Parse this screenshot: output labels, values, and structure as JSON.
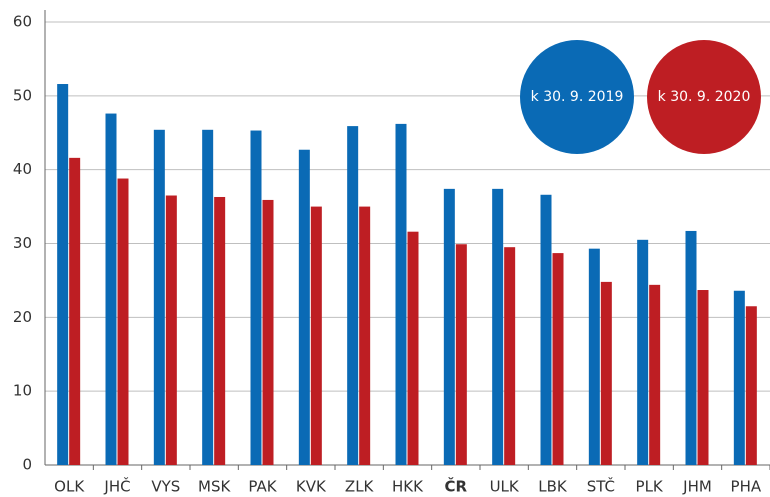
{
  "chart_data": {
    "type": "bar",
    "categories": [
      "OLK",
      "JHČ",
      "VYS",
      "MSK",
      "PAK",
      "KVK",
      "ZLK",
      "HKK",
      "ČR",
      "ULK",
      "LBK",
      "STČ",
      "PLK",
      "JHM",
      "PHA"
    ],
    "highlight_index": 8,
    "series": [
      {
        "name": "k 30. 9. 2019",
        "color": "#0a6ab5",
        "values": [
          51.6,
          47.6,
          45.4,
          45.4,
          45.3,
          42.7,
          45.9,
          46.2,
          37.4,
          37.4,
          36.6,
          29.3,
          30.5,
          31.7,
          23.6
        ]
      },
      {
        "name": "k 30. 9. 2020",
        "color": "#be1e23",
        "values": [
          41.6,
          38.8,
          36.5,
          36.3,
          35.9,
          35.0,
          35.0,
          31.6,
          29.9,
          29.5,
          28.7,
          24.8,
          24.4,
          23.7,
          21.5
        ]
      }
    ],
    "ylim": [
      0,
      60
    ],
    "yticks": [
      0,
      10,
      20,
      30,
      40,
      50,
      60
    ],
    "grid": true,
    "legend": "upper right"
  }
}
